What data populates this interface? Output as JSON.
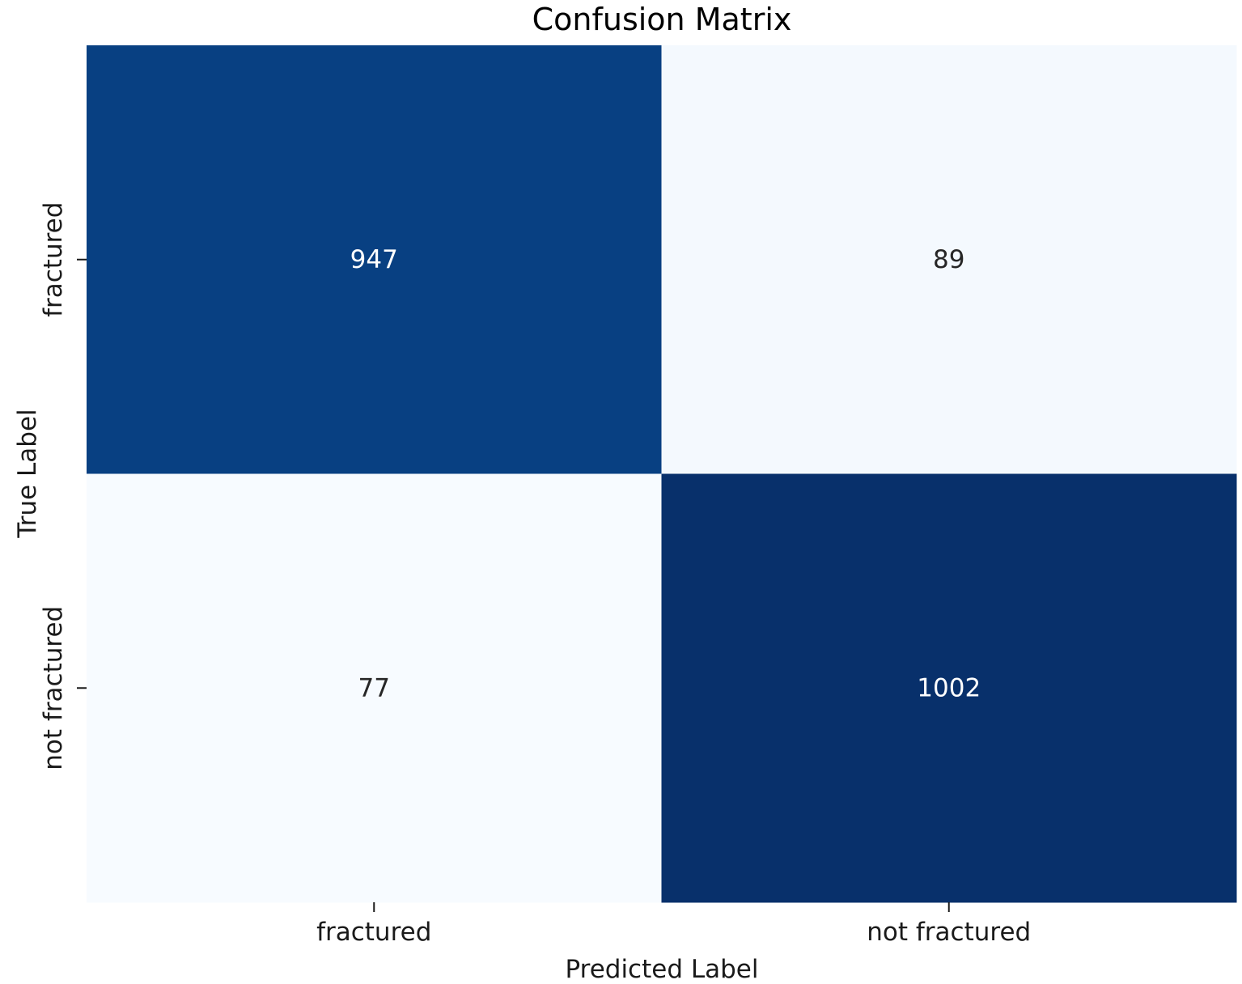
{
  "chart_data": {
    "type": "heatmap",
    "title": "Confusion Matrix",
    "xlabel": "Predicted Label",
    "ylabel": "True Label",
    "x_categories": [
      "fractured",
      "not fractured"
    ],
    "y_categories": [
      "fractured",
      "not fractured"
    ],
    "values": [
      [
        947,
        89
      ],
      [
        77,
        1002
      ]
    ],
    "colormap": "Blues",
    "colorbar": false,
    "colors": {
      "low": "#f7fbff",
      "mid": "#6baed6",
      "high": "#08306b",
      "dark_text": "#262626",
      "light_text": "#ffffff"
    }
  }
}
